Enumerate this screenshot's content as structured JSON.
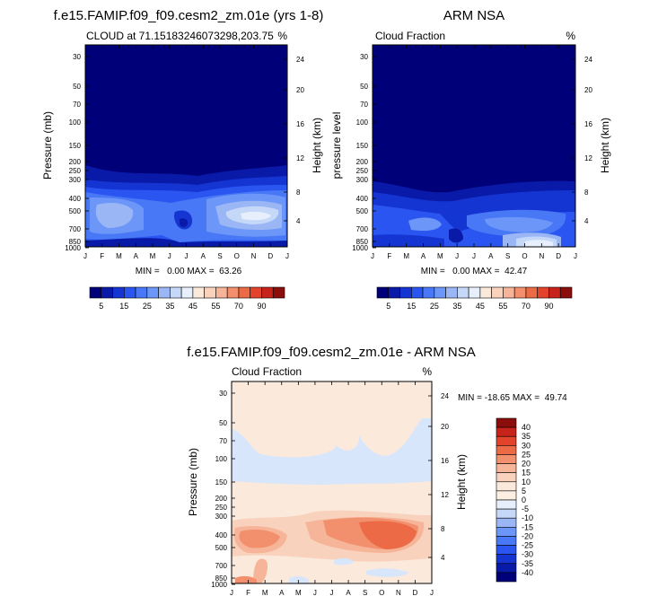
{
  "chart_data": [
    {
      "type": "contour",
      "title": "f.e15.FAMIP.f09_f09.cesm2_zm.01e (yrs 1-8)",
      "subtitle_left": "CLOUD at 71.15183246073298,203.75",
      "subtitle_right": "%",
      "xlabel": "",
      "ylabel": "Pressure (mb)",
      "ylabel_right": "Height (km)",
      "months": [
        "J",
        "F",
        "M",
        "A",
        "M",
        "J",
        "J",
        "A",
        "S",
        "O",
        "N",
        "D",
        "J"
      ],
      "pressure_ticks": [
        "30",
        "50",
        "70",
        "100",
        "150",
        "200",
        "250",
        "300",
        "400",
        "500",
        "700",
        "850",
        "1000"
      ],
      "height_ticks": [
        "24",
        "20",
        "16",
        "12",
        "8",
        "4"
      ],
      "stats": "MIN =   0.00 MAX =  63.26",
      "min": 0.0,
      "max": 63.26
    },
    {
      "type": "contour",
      "title": "ARM NSA",
      "subtitle_left": "Cloud Fraction",
      "subtitle_right": "%",
      "xlabel": "",
      "ylabel": "pressure level",
      "ylabel_right": "Height (km)",
      "months": [
        "J",
        "F",
        "M",
        "A",
        "M",
        "J",
        "J",
        "A",
        "S",
        "O",
        "N",
        "D",
        "J"
      ],
      "pressure_ticks": [
        "30",
        "50",
        "70",
        "100",
        "150",
        "200",
        "250",
        "300",
        "400",
        "500",
        "700",
        "850",
        "1000"
      ],
      "height_ticks": [
        "24",
        "20",
        "16",
        "12",
        "8",
        "4"
      ],
      "stats": "MIN =   0.00 MAX =  42.47",
      "min": 0.0,
      "max": 42.47
    },
    {
      "type": "contour",
      "title": "f.e15.FAMIP.f09_f09.cesm2_zm.01e - ARM NSA",
      "subtitle_left": "Cloud Fraction",
      "subtitle_right": "%",
      "xlabel": "",
      "ylabel": "Pressure (mb)",
      "ylabel_right": "Height (km)",
      "months": [
        "J",
        "F",
        "M",
        "A",
        "M",
        "J",
        "J",
        "A",
        "S",
        "O",
        "N",
        "D",
        "J"
      ],
      "pressure_ticks": [
        "30",
        "50",
        "70",
        "100",
        "150",
        "200",
        "250",
        "300",
        "400",
        "500",
        "700",
        "850",
        "1000"
      ],
      "height_ticks": [
        "24",
        "20",
        "16",
        "12",
        "8",
        "4"
      ],
      "stats": "MIN = -18.65 MAX =  49.74",
      "min": -18.65,
      "max": 49.74
    }
  ],
  "colorbar_top": {
    "labels": [
      "5",
      "15",
      "25",
      "35",
      "45",
      "55",
      "70",
      "90"
    ],
    "levels": [
      0,
      5,
      10,
      15,
      20,
      25,
      30,
      35,
      40,
      45,
      50,
      55,
      60,
      70,
      80,
      90,
      100
    ],
    "colors": [
      "#000078",
      "#0a1aa8",
      "#1535d2",
      "#2a55f0",
      "#4878f5",
      "#6c96f7",
      "#9ab6f5",
      "#c6d8f8",
      "#e6effb",
      "#fbe9dc",
      "#f8d2bc",
      "#f6b498",
      "#f2906e",
      "#ec6a45",
      "#e2432a",
      "#c8231a",
      "#8c0e0c"
    ]
  },
  "colorbar_diff": {
    "labels": [
      "40",
      "35",
      "30",
      "25",
      "20",
      "15",
      "10",
      "5",
      "0",
      "-5",
      "-10",
      "-15",
      "-20",
      "-25",
      "-30",
      "-35",
      "-40"
    ],
    "colors": [
      "#8c0e0c",
      "#c8231a",
      "#e2432a",
      "#ec6a45",
      "#f2906e",
      "#f6b498",
      "#f8d2bc",
      "#fbe9dc",
      "#fdf0e2",
      "#e6effb",
      "#c6d8f8",
      "#9ab6f5",
      "#6c96f7",
      "#4878f5",
      "#2a55f0",
      "#1535d2",
      "#0a1aa8",
      "#000078"
    ]
  }
}
